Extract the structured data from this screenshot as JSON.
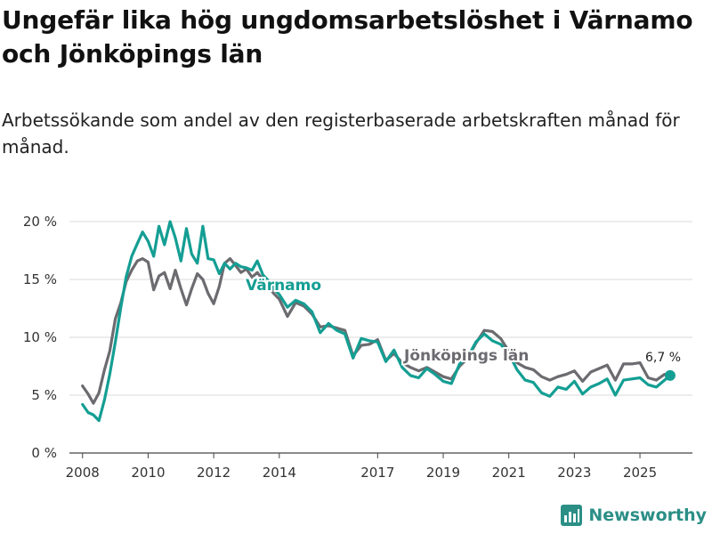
{
  "title": "Ungefär lika hög ungdomsarbetslöshet i Värnamo och Jönköpings län",
  "subtitle": "Arbetssökande som andel av den registerbaserade arbetskraften månad för månad.",
  "brand": "Newsworthy",
  "colors": {
    "varnamo": "#149e93",
    "jonkoping": "#6b6b70",
    "grid": "#d9d9d9",
    "axis": "#444444",
    "brand": "#2b8f86"
  },
  "chart_data": {
    "type": "line",
    "title": "Ungefär lika hög ungdomsarbetslöshet i Värnamo och Jönköpings län",
    "xlabel": "",
    "ylabel": "",
    "ylim": [
      0,
      20
    ],
    "xlim": [
      2007.6,
      2026.6
    ],
    "y_ticks": [
      0,
      5,
      10,
      15,
      20
    ],
    "y_tick_labels": [
      "0 %",
      "5 %",
      "10 %",
      "15 %",
      "20 %"
    ],
    "x_ticks": [
      2008,
      2010,
      2012,
      2014,
      2017,
      2019,
      2021,
      2023,
      2025
    ],
    "x_tick_labels": [
      "2008",
      "2010",
      "2012",
      "2014",
      "2017",
      "2019",
      "2021",
      "2023",
      "2025"
    ],
    "grid": true,
    "end_label": "6,7 %",
    "series": [
      {
        "name": "Värnamo",
        "x": [
          2008.0,
          2008.17,
          2008.33,
          2008.5,
          2008.67,
          2008.83,
          2009.0,
          2009.17,
          2009.33,
          2009.5,
          2009.67,
          2009.83,
          2010.0,
          2010.17,
          2010.33,
          2010.5,
          2010.67,
          2010.83,
          2011.0,
          2011.17,
          2011.33,
          2011.5,
          2011.67,
          2011.83,
          2012.0,
          2012.17,
          2012.33,
          2012.5,
          2012.67,
          2012.83,
          2013.0,
          2013.17,
          2013.33,
          2013.5,
          2013.67,
          2013.83,
          2014.0,
          2014.25,
          2014.5,
          2014.75,
          2015.0,
          2015.25,
          2015.5,
          2015.75,
          2016.0,
          2016.25,
          2016.5,
          2016.75,
          2017.0,
          2017.25,
          2017.5,
          2017.75,
          2018.0,
          2018.25,
          2018.5,
          2018.75,
          2019.0,
          2019.25,
          2019.5,
          2019.75,
          2020.0,
          2020.25,
          2020.5,
          2020.75,
          2021.0,
          2021.25,
          2021.5,
          2021.75,
          2022.0,
          2022.25,
          2022.5,
          2022.75,
          2023.0,
          2023.25,
          2023.5,
          2023.75,
          2024.0,
          2024.25,
          2024.5,
          2024.75,
          2025.0,
          2025.25,
          2025.5,
          2025.75,
          2025.92
        ],
        "values": [
          4.2,
          3.5,
          3.3,
          2.8,
          4.6,
          6.8,
          9.6,
          12.6,
          15.2,
          17.0,
          18.1,
          19.1,
          18.3,
          17.0,
          19.6,
          18.0,
          20.0,
          18.6,
          16.6,
          19.4,
          17.2,
          16.4,
          19.6,
          16.8,
          16.7,
          15.5,
          16.4,
          15.9,
          16.4,
          16.1,
          16.0,
          15.8,
          16.6,
          15.4,
          14.9,
          14.2,
          13.7,
          12.6,
          13.2,
          12.9,
          12.2,
          10.4,
          11.2,
          10.6,
          10.3,
          8.2,
          9.9,
          9.7,
          9.6,
          7.9,
          8.9,
          7.4,
          6.7,
          6.5,
          7.3,
          6.8,
          6.2,
          6.0,
          7.7,
          8.3,
          9.6,
          10.3,
          9.7,
          9.4,
          8.6,
          7.2,
          6.3,
          6.1,
          5.2,
          4.9,
          5.7,
          5.5,
          6.2,
          5.1,
          5.7,
          6.0,
          6.4,
          5.0,
          6.3,
          6.4,
          6.5,
          5.9,
          5.7,
          6.3,
          6.7
        ]
      },
      {
        "name": "Jönköpings län",
        "x": [
          2008.0,
          2008.17,
          2008.33,
          2008.5,
          2008.67,
          2008.83,
          2009.0,
          2009.17,
          2009.33,
          2009.5,
          2009.67,
          2009.83,
          2010.0,
          2010.17,
          2010.33,
          2010.5,
          2010.67,
          2010.83,
          2011.0,
          2011.17,
          2011.33,
          2011.5,
          2011.67,
          2011.83,
          2012.0,
          2012.17,
          2012.33,
          2012.5,
          2012.67,
          2012.83,
          2013.0,
          2013.17,
          2013.33,
          2013.5,
          2013.67,
          2013.83,
          2014.0,
          2014.25,
          2014.5,
          2014.75,
          2015.0,
          2015.25,
          2015.5,
          2015.75,
          2016.0,
          2016.25,
          2016.5,
          2016.75,
          2017.0,
          2017.25,
          2017.5,
          2017.75,
          2018.0,
          2018.25,
          2018.5,
          2018.75,
          2019.0,
          2019.25,
          2019.5,
          2019.75,
          2020.0,
          2020.25,
          2020.5,
          2020.75,
          2021.0,
          2021.25,
          2021.5,
          2021.75,
          2022.0,
          2022.25,
          2022.5,
          2022.75,
          2023.0,
          2023.25,
          2023.5,
          2023.75,
          2024.0,
          2024.25,
          2024.5,
          2024.75,
          2025.0,
          2025.25,
          2025.5,
          2025.75,
          2025.92
        ],
        "values": [
          5.8,
          5.1,
          4.3,
          5.2,
          7.2,
          8.8,
          11.6,
          13.0,
          14.8,
          15.8,
          16.6,
          16.8,
          16.5,
          14.1,
          15.3,
          15.6,
          14.2,
          15.8,
          14.2,
          12.8,
          14.2,
          15.5,
          15.0,
          13.8,
          12.9,
          14.4,
          16.4,
          16.8,
          16.2,
          15.6,
          15.9,
          15.2,
          15.6,
          15.0,
          14.4,
          13.8,
          13.3,
          11.8,
          13.0,
          12.7,
          12.0,
          10.9,
          11.0,
          10.8,
          10.6,
          8.4,
          9.3,
          9.4,
          9.8,
          8.0,
          8.6,
          7.8,
          7.4,
          7.1,
          7.4,
          7.0,
          6.6,
          6.4,
          7.5,
          8.2,
          9.5,
          10.6,
          10.5,
          9.9,
          8.8,
          7.8,
          7.4,
          7.2,
          6.6,
          6.3,
          6.6,
          6.8,
          7.1,
          6.2,
          7.0,
          7.3,
          7.6,
          6.3,
          7.7,
          7.7,
          7.8,
          6.5,
          6.3,
          6.8,
          6.7
        ]
      }
    ]
  }
}
